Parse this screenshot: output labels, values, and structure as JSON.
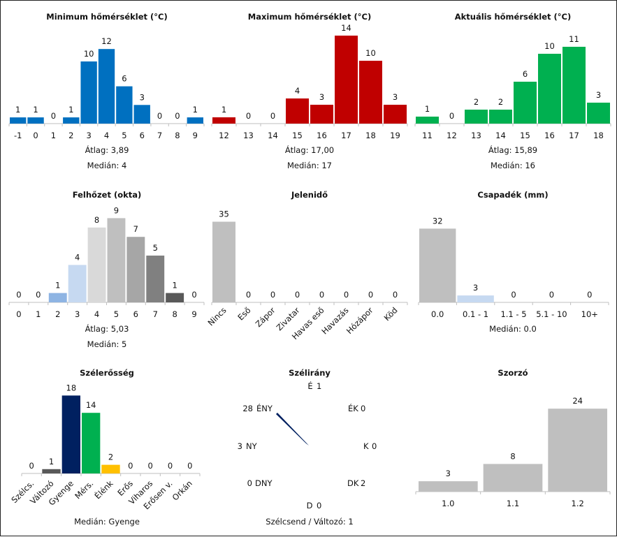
{
  "chart_data": [
    {
      "id": "min",
      "type": "bar",
      "title": "Minimum hőmérséklet (°C)",
      "categories": [
        "-1",
        "0",
        "1",
        "2",
        "3",
        "4",
        "5",
        "6",
        "7",
        "8",
        "9"
      ],
      "values": [
        1,
        1,
        0,
        1,
        10,
        12,
        6,
        3,
        0,
        0,
        1
      ],
      "colors": [
        "#0070c0"
      ],
      "stats": [
        {
          "label": "Átlag:",
          "value": "3,89"
        },
        {
          "label": "Medián:",
          "value": "4"
        }
      ]
    },
    {
      "id": "max",
      "type": "bar",
      "title": "Maximum hőmérséklet (°C)",
      "categories": [
        "12",
        "13",
        "14",
        "15",
        "16",
        "17",
        "18",
        "19"
      ],
      "values": [
        1,
        0,
        0,
        4,
        3,
        14,
        10,
        3
      ],
      "colors": [
        "#c00000"
      ],
      "stats": [
        {
          "label": "Átlag:",
          "value": "17,00"
        },
        {
          "label": "Medián:",
          "value": "17"
        }
      ]
    },
    {
      "id": "act",
      "type": "bar",
      "title": "Aktuális hőmérséklet (°C)",
      "categories": [
        "11",
        "12",
        "13",
        "14",
        "15",
        "16",
        "17",
        "18"
      ],
      "values": [
        1,
        0,
        2,
        2,
        6,
        10,
        11,
        3
      ],
      "colors": [
        "#00b050"
      ],
      "stats": [
        {
          "label": "Átlag:",
          "value": "15,89"
        },
        {
          "label": "Medián:",
          "value": "16"
        }
      ]
    },
    {
      "id": "cloud",
      "type": "bar",
      "title": "Felhőzet (okta)",
      "categories": [
        "0",
        "1",
        "2",
        "3",
        "4",
        "5",
        "6",
        "7",
        "8",
        "9"
      ],
      "values": [
        0,
        0,
        1,
        4,
        8,
        9,
        7,
        5,
        1,
        0
      ],
      "colors": [
        "#bdd7ee",
        "#bdd7ee",
        "#8eb4e3",
        "#c6d9f1",
        "#d9d9d9",
        "#bfbfbf",
        "#a6a6a6",
        "#808080",
        "#595959",
        "#bfbfbf"
      ],
      "stats": [
        {
          "label": "Átlag:",
          "value": "5,03"
        },
        {
          "label": "Medián:",
          "value": "5"
        }
      ]
    },
    {
      "id": "wx",
      "type": "bar",
      "title": "Jelenidő",
      "categories": [
        "Nincs",
        "Eső",
        "Zápor",
        "Zivatar",
        "Havas eső",
        "Havazás",
        "Hózápor",
        "Köd"
      ],
      "values": [
        35,
        0,
        0,
        0,
        0,
        0,
        0,
        0
      ],
      "colors": [
        "#bfbfbf"
      ],
      "stats": []
    },
    {
      "id": "precip",
      "type": "bar",
      "title": "Csapadék (mm)",
      "categories": [
        "0.0",
        "0.1 - 1",
        "1.1 - 5",
        "5.1 - 10",
        "10+"
      ],
      "values": [
        32,
        3,
        0,
        0,
        0
      ],
      "colors": [
        "#bfbfbf",
        "#c6d9f1",
        "#bfbfbf",
        "#bfbfbf",
        "#bfbfbf"
      ],
      "stats": [
        {
          "label": "Medián:",
          "value": "0.0"
        }
      ]
    },
    {
      "id": "wspd",
      "type": "bar",
      "title": "Szélerősség",
      "categories": [
        "Szélcs.",
        "Változó",
        "Gyenge",
        "Mérs.",
        "Élénk",
        "Erős",
        "Viharos",
        "Erősen v.",
        "Orkán"
      ],
      "values": [
        0,
        1,
        18,
        14,
        2,
        0,
        0,
        0,
        0
      ],
      "colors": [
        "#595959",
        "#595959",
        "#002060",
        "#00b050",
        "#ffc000",
        "#bfbfbf",
        "#bfbfbf",
        "#bfbfbf",
        "#bfbfbf"
      ],
      "stats": [
        {
          "label": "Medián:",
          "value": "Gyenge"
        }
      ]
    },
    {
      "id": "wdir",
      "type": "compass",
      "title": "Szélirány",
      "directions": [
        {
          "name": "É",
          "value": 1
        },
        {
          "name": "ÉK",
          "value": 0
        },
        {
          "name": "K",
          "value": 0
        },
        {
          "name": "DK",
          "value": 2
        },
        {
          "name": "D",
          "value": 0
        },
        {
          "name": "DNY",
          "value": 0
        },
        {
          "name": "NY",
          "value": 3
        },
        {
          "name": "ÉNY",
          "value": 28
        }
      ],
      "arrow_direction": "ÉNY",
      "arrow_color": "#002060",
      "footer_label": "Szélcsend / Változó:",
      "footer_value": "1"
    },
    {
      "id": "mult",
      "type": "bar",
      "title": "Szorzó",
      "categories": [
        "1.0",
        "1.1",
        "1.2"
      ],
      "values": [
        3,
        8,
        24
      ],
      "colors": [
        "#bfbfbf"
      ],
      "stats": []
    }
  ]
}
